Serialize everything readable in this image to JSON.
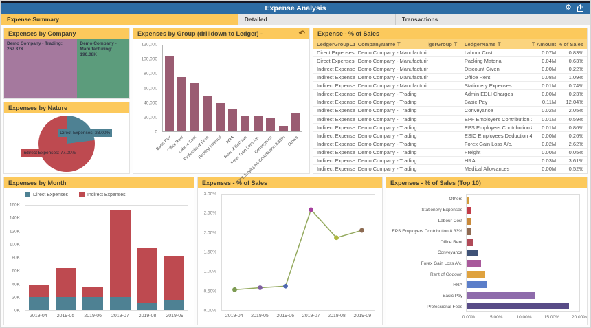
{
  "header": {
    "title": "Expense Analysis",
    "gear_glyph": "⚙"
  },
  "tabs": [
    {
      "label": "Expense Summary",
      "active": true
    },
    {
      "label": "Detailed",
      "active": false
    },
    {
      "label": "Transactions",
      "active": false
    }
  ],
  "panels": {
    "company": {
      "title": "Expenses by Company"
    },
    "nature": {
      "title": "Expenses by Nature"
    },
    "group": {
      "title": "Expenses by Group (drilldown to Ledger) -",
      "undo_glyph": "↶"
    },
    "table": {
      "title": "Expense - % of Sales",
      "columns": [
        {
          "label": "LedgerGroupL1",
          "align": "left",
          "filter": "after",
          "width": "15%"
        },
        {
          "label": "CompanyName",
          "align": "left",
          "filter": "after",
          "width": "27%"
        },
        {
          "label": "LedgerGroup",
          "align": "right",
          "filter": "after",
          "width": "12%"
        },
        {
          "label": "LedgerName",
          "align": "left",
          "filter": "after",
          "width": "26%"
        },
        {
          "label": "Amount",
          "align": "right",
          "filter": "before",
          "width": "10%"
        },
        {
          "label": "% of Sales",
          "align": "right",
          "filter": "before",
          "width": "10%"
        }
      ],
      "rows": [
        [
          "Direct Expenses",
          "Demo Company - Manufacturing",
          "",
          "Labour Cost",
          "0.07M",
          "0.83%"
        ],
        [
          "Direct Expenses",
          "Demo Company - Manufacturing",
          "",
          "Packing Material",
          "0.04M",
          "0.63%"
        ],
        [
          "Indirect Expenses",
          "Demo Company - Manufacturing",
          "",
          "Discount Given",
          "0.00M",
          "0.22%"
        ],
        [
          "Indirect Expenses",
          "Demo Company - Manufacturing",
          "",
          "Office Rent",
          "0.08M",
          "1.09%"
        ],
        [
          "Indirect Expenses",
          "Demo Company - Manufacturing",
          "",
          "Stationery Expenses",
          "0.01M",
          "0.74%"
        ],
        [
          "Indirect Expenses",
          "Demo Company - Trading",
          "",
          "Admin EDLI Charges",
          "0.00M",
          "0.23%"
        ],
        [
          "Indirect Expenses",
          "Demo Company - Trading",
          "",
          "Basic Pay",
          "0.11M",
          "12.04%"
        ],
        [
          "Indirect Expenses",
          "Demo Company - Trading",
          "",
          "Conveyance",
          "0.02M",
          "2.05%"
        ],
        [
          "Indirect Expenses",
          "Demo Company - Trading",
          "",
          "EPF Employers Contribution 3.67%",
          "0.01M",
          "0.59%"
        ],
        [
          "Indirect Expenses",
          "Demo Company - Trading",
          "",
          "EPS Employers Contribution 8.33%",
          "0.01M",
          "0.86%"
        ],
        [
          "Indirect Expenses",
          "Demo Company - Trading",
          "",
          "ESIC Employees Deduction 4%",
          "0.00M",
          "0.26%"
        ],
        [
          "Indirect Expenses",
          "Demo Company - Trading",
          "",
          "Forex Gain Loss A/c.",
          "0.02M",
          "2.62%"
        ],
        [
          "Indirect Expenses",
          "Demo Company - Trading",
          "",
          "Freight",
          "0.00M",
          "0.05%"
        ],
        [
          "Indirect Expenses",
          "Demo Company - Trading",
          "",
          "HRA",
          "0.03M",
          "3.61%"
        ],
        [
          "Indirect Expenses",
          "Demo Company - Trading",
          "",
          "Medical Allowances",
          "0.00M",
          "0.52%"
        ]
      ]
    },
    "month": {
      "title": "Expenses by Month"
    },
    "sales_line": {
      "title": "Expenses - % of Sales"
    },
    "top10": {
      "title": "Expenses - % of Sales (Top 10)"
    }
  },
  "chart_data": [
    {
      "id": "company_treemap",
      "type": "treemap",
      "items": [
        {
          "label": "Demo Company - Trading: 267.37K",
          "value": 267370,
          "color": "#A5799E"
        },
        {
          "label": "Demo Company - Manufacturing: 190.08K",
          "value": 190080,
          "color": "#5C9C7C"
        }
      ]
    },
    {
      "id": "nature_pie",
      "type": "pie",
      "slices": [
        {
          "label": "Direct Expenses: 23.00%",
          "value": 23.0,
          "color": "#4E8193"
        },
        {
          "label": "Indirect Expenses: 77.00%",
          "value": 77.0,
          "color": "#BE4A50"
        }
      ]
    },
    {
      "id": "group_bar",
      "type": "bar",
      "color": "#9A5C72",
      "ylim": [
        0,
        120000
      ],
      "yticks": [
        "0",
        "20,000",
        "40,000",
        "60,000",
        "80,000",
        "100,000",
        "120,000"
      ],
      "categories": [
        "Basic Pay",
        "Office Rent",
        "Labour Cost",
        "Professional Fees",
        "Packing Material",
        "HRA",
        "Rent of Godown",
        "Forex Gain Loss A/c.",
        "Conveyance",
        "EPS Employers Contribution 8.33%",
        "Others"
      ],
      "values": [
        105000,
        75000,
        66500,
        50000,
        39000,
        31000,
        20500,
        20500,
        18500,
        8000,
        26000
      ]
    },
    {
      "id": "month_stacked",
      "type": "bar-stacked",
      "ylim": [
        0,
        160000
      ],
      "yticks": [
        "0K",
        "20K",
        "40K",
        "60K",
        "80K",
        "100K",
        "120K",
        "140K",
        "160K"
      ],
      "categories": [
        "2019-04",
        "2019-05",
        "2019-06",
        "2019-07",
        "2019-08",
        "2019-09"
      ],
      "series": [
        {
          "name": "Direct Expenses",
          "color": "#4E8193",
          "values": [
            20000,
            20000,
            20000,
            20000,
            11000,
            16000
          ]
        },
        {
          "name": "Indirect Expenses",
          "color": "#BE4A50",
          "values": [
            17000,
            43000,
            15000,
            130000,
            83000,
            65000
          ]
        }
      ]
    },
    {
      "id": "sales_line",
      "type": "line",
      "ylim": [
        0,
        3
      ],
      "yticks": [
        "0.00%",
        "0.50%",
        "1.00%",
        "1.50%",
        "2.00%",
        "2.50%",
        "3.00%"
      ],
      "categories": [
        "2019-04",
        "2019-05",
        "2019-06",
        "2019-07",
        "2019-08",
        "2019-09"
      ],
      "values": [
        0.53,
        0.58,
        0.62,
        2.61,
        1.88,
        2.07
      ],
      "line_color": "#94A95E",
      "point_colors": [
        "#7D9B53",
        "#7F5FA0",
        "#4E68B0",
        "#A53F9E",
        "#AEB83F",
        "#8D6B52"
      ]
    },
    {
      "id": "top10_hbar",
      "type": "hbar",
      "xlim": [
        0,
        20
      ],
      "xticks": [
        "0.00%",
        "5.00%",
        "10.00%",
        "15.00%",
        "20.00%"
      ],
      "items": [
        {
          "label": "Others",
          "value": 0.35,
          "color": "#D29C3D"
        },
        {
          "label": "Stationery Expenses",
          "value": 0.74,
          "color": "#C23C49"
        },
        {
          "label": "Labour Cost",
          "value": 0.83,
          "color": "#C98A3B"
        },
        {
          "label": "EPS Employers Contribution 8.33%",
          "value": 0.86,
          "color": "#8F6A52"
        },
        {
          "label": "Office Rent",
          "value": 1.09,
          "color": "#B04A58"
        },
        {
          "label": "Conveyance",
          "value": 2.05,
          "color": "#3F5277"
        },
        {
          "label": "Forex Gain Loss A/c.",
          "value": 2.62,
          "color": "#A8599B"
        },
        {
          "label": "Rent of Godown",
          "value": 3.3,
          "color": "#DFA23E"
        },
        {
          "label": "HRA",
          "value": 3.61,
          "color": "#5B7EC9"
        },
        {
          "label": "Basic Pay",
          "value": 12.04,
          "color": "#8E6BAB"
        },
        {
          "label": "Professional Fees",
          "value": 18.2,
          "color": "#584C87"
        }
      ]
    }
  ],
  "colors": {
    "header_blue": "#2D6CA4",
    "accent_yellow": "#FCC95C",
    "table_header_yellow": "#FBD47E"
  }
}
